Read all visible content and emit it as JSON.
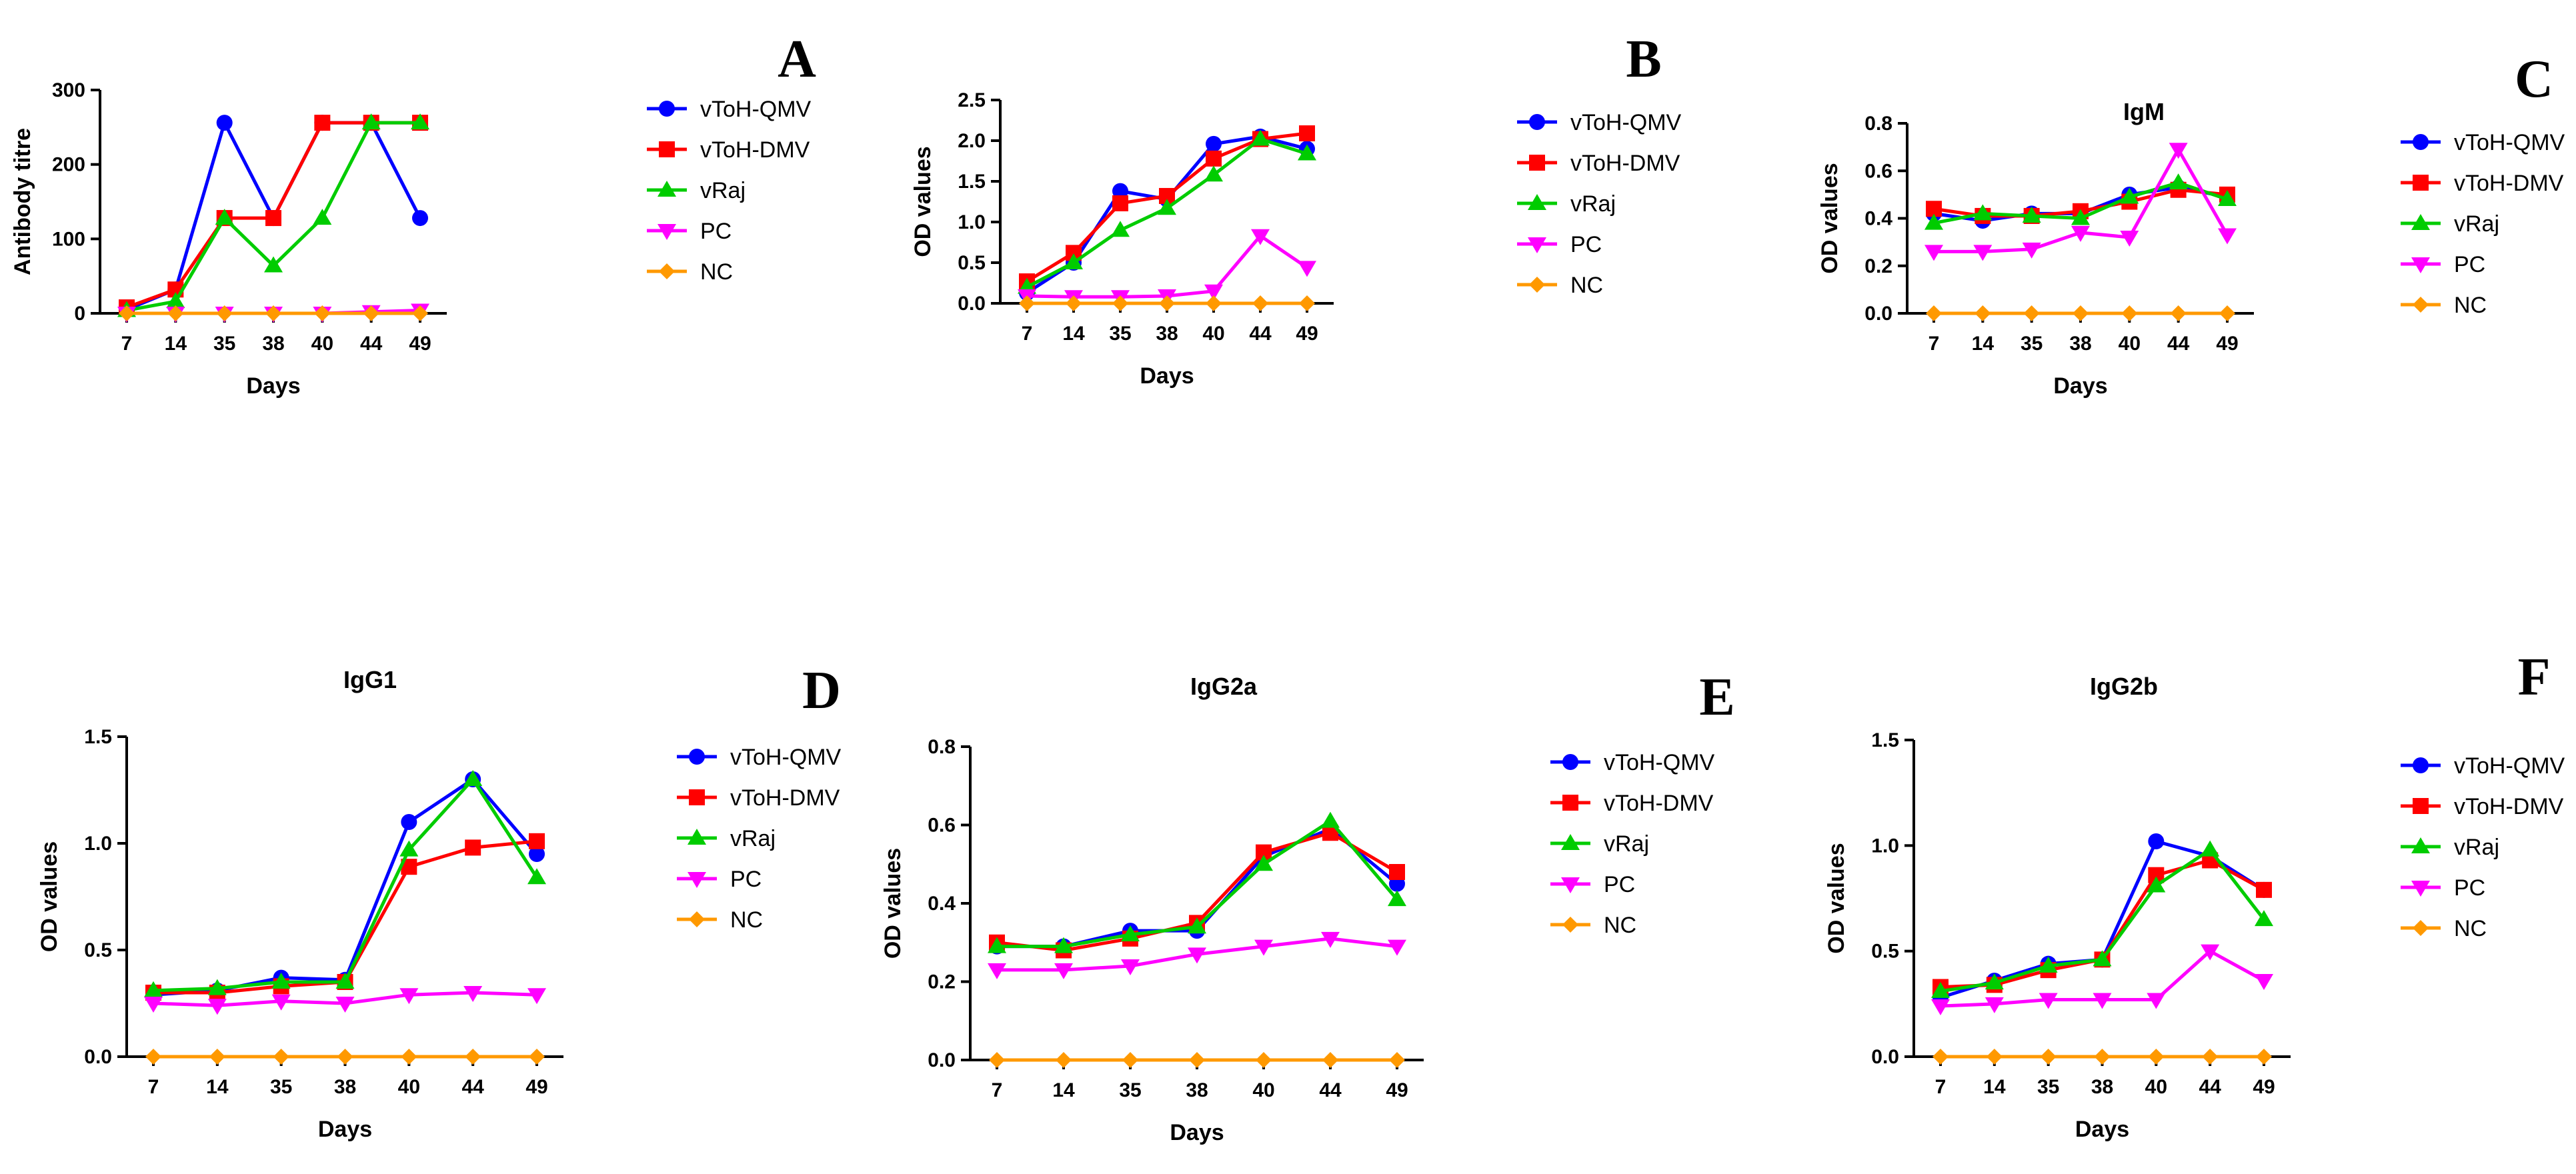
{
  "figure": {
    "series_style": [
      {
        "name": "vToH-QMV",
        "color": "#0000ff",
        "marker": "circle"
      },
      {
        "name": "vToH-DMV",
        "color": "#ff0000",
        "marker": "square"
      },
      {
        "name": "vRaj",
        "color": "#00cc00",
        "marker": "triangle-up"
      },
      {
        "name": "PC",
        "color": "#ff00ff",
        "marker": "triangle-down"
      },
      {
        "name": "NC",
        "color": "#ff9900",
        "marker": "diamond"
      }
    ]
  },
  "chart_data": [
    {
      "panel": "A",
      "type": "line",
      "title": "",
      "xlabel": "Days",
      "ylabel": "Antibody titre",
      "categories": [
        "7",
        "14",
        "35",
        "38",
        "40",
        "44",
        "49"
      ],
      "ylim": [
        0,
        300
      ],
      "yticks": [
        0,
        100,
        200,
        300
      ],
      "ytick_labels": [
        "0",
        "100",
        "200",
        "300"
      ],
      "series": [
        {
          "name": "vToH-QMV",
          "values": [
            5,
            32,
            256,
            128,
            256,
            256,
            128
          ]
        },
        {
          "name": "vToH-DMV",
          "values": [
            8,
            32,
            128,
            128,
            256,
            256,
            256
          ]
        },
        {
          "name": "vRaj",
          "values": [
            4,
            16,
            128,
            64,
            128,
            256,
            256
          ]
        },
        {
          "name": "PC",
          "values": [
            0,
            0,
            0,
            0,
            0,
            2,
            4
          ]
        },
        {
          "name": "NC",
          "values": [
            0,
            0,
            0,
            0,
            0,
            0,
            0
          ]
        }
      ],
      "legend": [
        "vToH-QMV",
        "vToH-DMV",
        "vRaj",
        "PC",
        "NC"
      ]
    },
    {
      "panel": "B",
      "type": "line",
      "title": "",
      "xlabel": "Days",
      "ylabel": "OD values",
      "categories": [
        "7",
        "14",
        "35",
        "38",
        "40",
        "44",
        "49"
      ],
      "ylim": [
        0,
        2.5
      ],
      "yticks": [
        0,
        0.5,
        1,
        1.5,
        2,
        2.5
      ],
      "ytick_labels": [
        "0.0",
        "0.5",
        "1.0",
        "1.5",
        "2.0",
        "2.5"
      ],
      "series": [
        {
          "name": "vToH-QMV",
          "values": [
            0.13,
            0.5,
            1.38,
            1.28,
            1.96,
            2.05,
            1.9
          ]
        },
        {
          "name": "vToH-DMV",
          "values": [
            0.27,
            0.62,
            1.23,
            1.32,
            1.78,
            2.02,
            2.09
          ]
        },
        {
          "name": "vRaj",
          "values": [
            0.2,
            0.5,
            0.9,
            1.17,
            1.58,
            2.02,
            1.84
          ]
        },
        {
          "name": "PC",
          "values": [
            0.09,
            0.08,
            0.08,
            0.09,
            0.15,
            0.83,
            0.44
          ]
        },
        {
          "name": "NC",
          "values": [
            0,
            0,
            0,
            0,
            0,
            0,
            0
          ]
        }
      ],
      "legend": [
        "vToH-QMV",
        "vToH-DMV",
        "vRaj",
        "PC",
        "NC"
      ]
    },
    {
      "panel": "C",
      "type": "line",
      "title": "IgM",
      "xlabel": "Days",
      "ylabel": "OD values",
      "categories": [
        "7",
        "14",
        "35",
        "38",
        "40",
        "44",
        "49"
      ],
      "ylim": [
        0,
        0.8
      ],
      "yticks": [
        0,
        0.2,
        0.4,
        0.6,
        0.8
      ],
      "ytick_labels": [
        "0.0",
        "0.2",
        "0.4",
        "0.6",
        "0.8"
      ],
      "series": [
        {
          "name": "vToH-QMV",
          "values": [
            0.42,
            0.39,
            0.42,
            0.42,
            0.5,
            0.53,
            0.49
          ]
        },
        {
          "name": "vToH-DMV",
          "values": [
            0.44,
            0.41,
            0.41,
            0.43,
            0.47,
            0.52,
            0.5
          ]
        },
        {
          "name": "vRaj",
          "values": [
            0.38,
            0.42,
            0.41,
            0.4,
            0.49,
            0.55,
            0.48
          ]
        },
        {
          "name": "PC",
          "values": [
            0.26,
            0.26,
            0.27,
            0.34,
            0.32,
            0.69,
            0.33
          ]
        },
        {
          "name": "NC",
          "values": [
            0,
            0,
            0,
            0,
            0,
            0,
            0
          ]
        }
      ],
      "legend": [
        "vToH-QMV",
        "vToH-DMV",
        "vRaj",
        "PC",
        "NC"
      ]
    },
    {
      "panel": "D",
      "type": "line",
      "title": "IgG1",
      "xlabel": "Days",
      "ylabel": "OD values",
      "categories": [
        "7",
        "14",
        "35",
        "38",
        "40",
        "44",
        "49"
      ],
      "ylim": [
        0,
        1.5
      ],
      "yticks": [
        0,
        0.5,
        1,
        1.5
      ],
      "ytick_labels": [
        "0.0",
        "0.5",
        "1.0",
        "1.5"
      ],
      "series": [
        {
          "name": "vToH-QMV",
          "values": [
            0.29,
            0.31,
            0.37,
            0.36,
            1.1,
            1.3,
            0.95
          ]
        },
        {
          "name": "vToH-DMV",
          "values": [
            0.3,
            0.3,
            0.33,
            0.35,
            0.89,
            0.98,
            1.01
          ]
        },
        {
          "name": "vRaj",
          "values": [
            0.31,
            0.32,
            0.35,
            0.35,
            0.97,
            1.3,
            0.84
          ]
        },
        {
          "name": "PC",
          "values": [
            0.25,
            0.24,
            0.26,
            0.25,
            0.29,
            0.3,
            0.29
          ]
        },
        {
          "name": "NC",
          "values": [
            0,
            0,
            0,
            0,
            0,
            0,
            0
          ]
        }
      ],
      "legend": [
        "vToH-QMV",
        "vToH-DMV",
        "vRaj",
        "PC",
        "NC"
      ]
    },
    {
      "panel": "E",
      "type": "line",
      "title": "IgG2a",
      "xlabel": "Days",
      "ylabel": "OD values",
      "categories": [
        "7",
        "14",
        "35",
        "38",
        "40",
        "44",
        "49"
      ],
      "ylim": [
        0,
        0.8
      ],
      "yticks": [
        0,
        0.2,
        0.4,
        0.6,
        0.8
      ],
      "ytick_labels": [
        "0.0",
        "0.2",
        "0.4",
        "0.6",
        "0.8"
      ],
      "series": [
        {
          "name": "vToH-QMV",
          "values": [
            0.29,
            0.29,
            0.33,
            0.33,
            0.52,
            0.59,
            0.45
          ]
        },
        {
          "name": "vToH-DMV",
          "values": [
            0.3,
            0.28,
            0.31,
            0.35,
            0.53,
            0.58,
            0.48
          ]
        },
        {
          "name": "vRaj",
          "values": [
            0.29,
            0.29,
            0.32,
            0.34,
            0.5,
            0.61,
            0.41
          ]
        },
        {
          "name": "PC",
          "values": [
            0.23,
            0.23,
            0.24,
            0.27,
            0.29,
            0.31,
            0.29
          ]
        },
        {
          "name": "NC",
          "values": [
            0,
            0,
            0,
            0,
            0,
            0,
            0
          ]
        }
      ],
      "legend": [
        "vToH-QMV",
        "vToH-DMV",
        "vRaj",
        "PC",
        "NC"
      ]
    },
    {
      "panel": "F",
      "type": "line",
      "title": "IgG2b",
      "xlabel": "Days",
      "ylabel": "OD values",
      "categories": [
        "7",
        "14",
        "35",
        "38",
        "40",
        "44",
        "49"
      ],
      "ylim": [
        0,
        1.5
      ],
      "yticks": [
        0,
        0.5,
        1,
        1.5
      ],
      "ytick_labels": [
        "0.0",
        "0.5",
        "1.0",
        "1.5"
      ],
      "series": [
        {
          "name": "vToH-QMV",
          "values": [
            0.28,
            0.36,
            0.44,
            0.46,
            1.02,
            0.95,
            0.79
          ]
        },
        {
          "name": "vToH-DMV",
          "values": [
            0.33,
            0.34,
            0.41,
            0.46,
            0.86,
            0.93,
            0.79
          ]
        },
        {
          "name": "vRaj",
          "values": [
            0.31,
            0.35,
            0.43,
            0.46,
            0.81,
            0.98,
            0.65
          ]
        },
        {
          "name": "PC",
          "values": [
            0.24,
            0.25,
            0.27,
            0.27,
            0.27,
            0.5,
            0.36
          ]
        },
        {
          "name": "NC",
          "values": [
            0,
            0,
            0,
            0,
            0,
            0,
            0
          ]
        }
      ],
      "legend": [
        "vToH-QMV",
        "vToH-DMV",
        "vRaj",
        "PC",
        "NC"
      ]
    }
  ]
}
